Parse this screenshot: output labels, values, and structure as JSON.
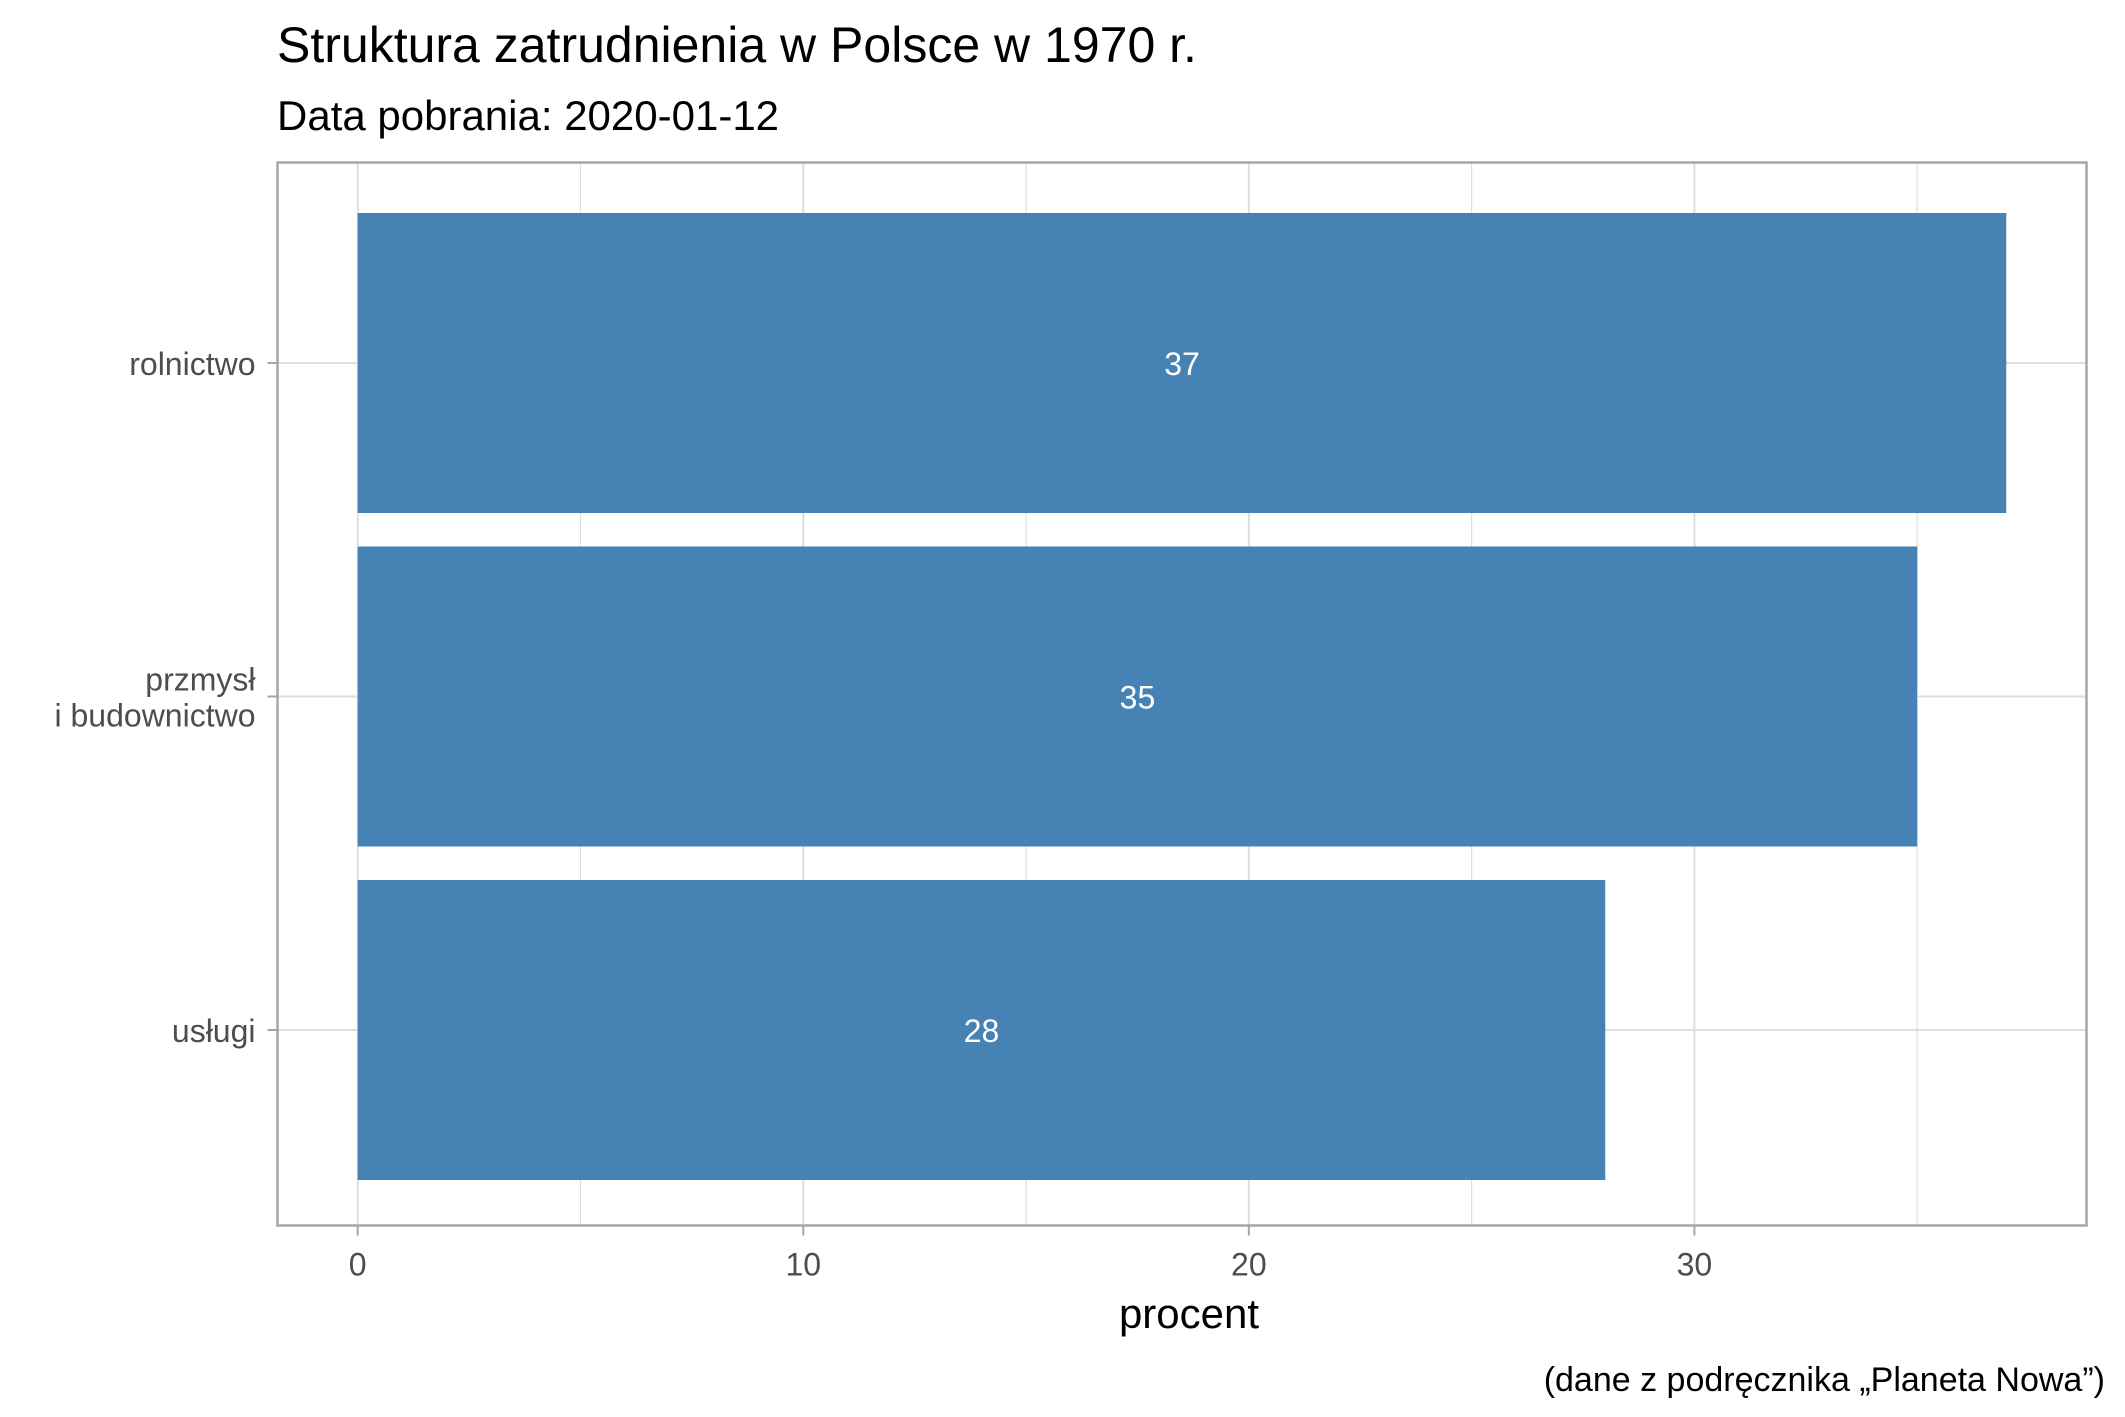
{
  "chart_data": {
    "type": "bar",
    "orientation": "horizontal",
    "title": "Struktura zatrudnienia w Polsce w 1970 r.",
    "subtitle": "Data pobrania: 2020-01-12",
    "categories": [
      "rolnictwo",
      "przmysł\ni budownictwo",
      "usługi"
    ],
    "values": [
      37,
      35,
      28
    ],
    "data_labels": [
      "37",
      "35",
      "28"
    ],
    "xlabel": "procent",
    "ylabel": "",
    "xlim": [
      -1.8,
      38.8
    ],
    "x_ticks": [
      0,
      10,
      20,
      30
    ],
    "x_tick_labels": [
      "0",
      "10",
      "20",
      "30"
    ],
    "caption": "(dane z podręcznika „Planeta Nowa”)",
    "grid": true,
    "legend": "none",
    "colors": {
      "bar": "#4682B4",
      "grid": "#DEDEDE",
      "panel_border": "#A6A6A6",
      "axis_text": "#4D4D4D",
      "title_text": "#000000",
      "bar_label": "#FFFFFF"
    }
  }
}
